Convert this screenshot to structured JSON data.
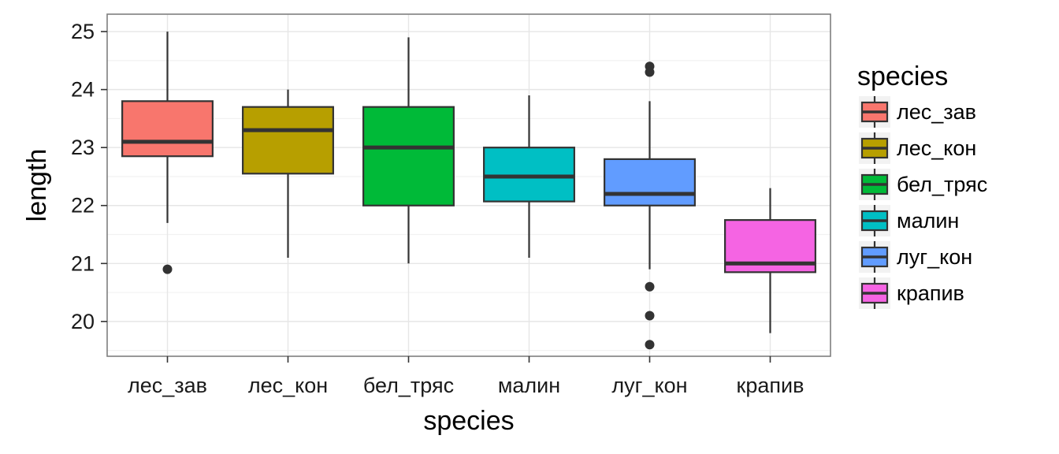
{
  "chart_data": {
    "type": "boxplot",
    "xlabel": "species",
    "ylabel": "length",
    "ylim": [
      19.4,
      25.3
    ],
    "yticks": [
      20,
      21,
      22,
      23,
      24,
      25
    ],
    "grid": true,
    "legend": {
      "title": "species",
      "position": "right"
    },
    "categories": [
      "лес_зав",
      "лес_кон",
      "бел_тряс",
      "малин",
      "луг_кон",
      "крапив"
    ],
    "colors": [
      "#F8766D",
      "#B79F00",
      "#00BA38",
      "#00BFC4",
      "#619CFF",
      "#F564E3"
    ],
    "boxes": [
      {
        "category": "лес_зав",
        "min": 21.7,
        "q1": 22.85,
        "median": 23.1,
        "q3": 23.8,
        "max": 25.0,
        "outliers": [
          20.9
        ]
      },
      {
        "category": "лес_кон",
        "min": 21.1,
        "q1": 22.55,
        "median": 23.3,
        "q3": 23.7,
        "max": 24.0,
        "outliers": []
      },
      {
        "category": "бел_тряс",
        "min": 21.0,
        "q1": 22.0,
        "median": 23.0,
        "q3": 23.7,
        "max": 24.9,
        "outliers": []
      },
      {
        "category": "малин",
        "min": 21.1,
        "q1": 22.07,
        "median": 22.5,
        "q3": 23.0,
        "max": 23.9,
        "outliers": []
      },
      {
        "category": "луг_кон",
        "min": 20.9,
        "q1": 22.0,
        "median": 22.2,
        "q3": 22.8,
        "max": 23.8,
        "outliers": [
          24.4,
          24.3,
          20.6,
          20.1,
          19.6
        ]
      },
      {
        "category": "крапив",
        "min": 19.8,
        "q1": 20.85,
        "median": 21.0,
        "q3": 21.75,
        "max": 22.3,
        "outliers": []
      }
    ]
  }
}
